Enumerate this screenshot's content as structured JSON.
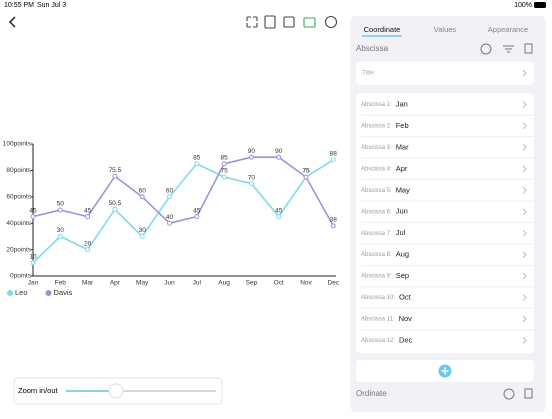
{
  "status_bar": {
    "time": "10:55 PM",
    "date": "Sun Jul 3",
    "battery": "100%"
  },
  "chart_data": {
    "type": "line",
    "categories": [
      "Jan",
      "Feb",
      "Mar",
      "Apr",
      "May",
      "Jun",
      "Jul",
      "Aug",
      "Sep",
      "Oct",
      "Nov",
      "Dec"
    ],
    "series": [
      {
        "name": "Leo",
        "color": "#7fd9f2",
        "values": [
          10,
          30,
          20,
          50.5,
          30,
          60,
          85,
          75,
          70,
          45,
          75,
          88
        ]
      },
      {
        "name": "Davis",
        "color": "#9c92e0",
        "values": [
          45,
          50,
          45,
          75.5,
          60,
          40,
          45,
          85,
          90,
          90,
          75,
          38
        ]
      }
    ],
    "ylim": [
      0,
      100
    ],
    "yticks": [
      {
        "value": 0,
        "label": "0points"
      },
      {
        "value": 20,
        "label": "20points"
      },
      {
        "value": 40,
        "label": "40points"
      },
      {
        "value": 60,
        "label": "60points"
      },
      {
        "value": 80,
        "label": "80points"
      },
      {
        "value": 100,
        "label": "100points"
      }
    ]
  },
  "panel": {
    "tabs": [
      "Coordinate",
      "Values",
      "Appearance"
    ],
    "section": "Abscissa",
    "title_row": "Title",
    "abscissa": [
      {
        "label": "Abscissa 1:",
        "value": "Jan"
      },
      {
        "label": "Abscissa 2:",
        "value": "Feb"
      },
      {
        "label": "Abscissa 3:",
        "value": "Mar"
      },
      {
        "label": "Abscissa 4:",
        "value": "Apr"
      },
      {
        "label": "Abscissa 5:",
        "value": "May"
      },
      {
        "label": "Abscissa 6:",
        "value": "Jun"
      },
      {
        "label": "Abscissa 7:",
        "value": "Jul"
      },
      {
        "label": "Abscissa 8:",
        "value": "Aug"
      },
      {
        "label": "Abscissa 9:",
        "value": "Sep"
      },
      {
        "label": "Abscissa 10:",
        "value": "Oct"
      },
      {
        "label": "Abscissa 11:",
        "value": "Nov"
      },
      {
        "label": "Abscissa 12:",
        "value": "Dec"
      }
    ],
    "footer_section": "Ordinate"
  },
  "zoom": {
    "label": "Zoom in/out"
  }
}
